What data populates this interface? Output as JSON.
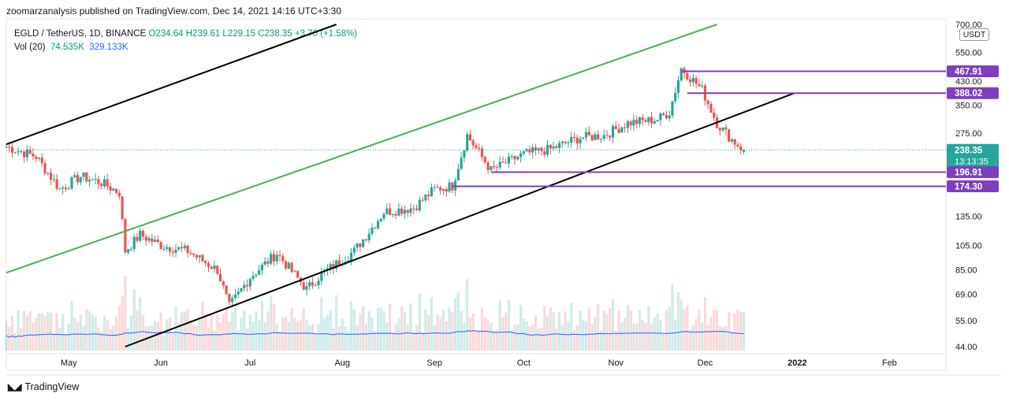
{
  "header": {
    "published": "zoomarzanalysis published on TradingView.com, Dec 14, 2021 14:16 UTC+3:30"
  },
  "legend": {
    "symbol": "EGLD / TetherUS, 1D, BINANCE",
    "ohlc": "O234.64  H239.61  L229.15  C238.35  +3.70 (+1.58%)",
    "volume_label": "Vol (20)",
    "volume_value": "74.535K",
    "volume_ma": "329.133K"
  },
  "price_axis": {
    "unit": "USDT",
    "ticks": [
      "700.00",
      "550.00",
      "430.00",
      "350.00",
      "275.00",
      "135.00",
      "105.00",
      "85.00",
      "69.00",
      "55.00",
      "44.00"
    ]
  },
  "time_axis": {
    "ticks": [
      "May",
      "Jun",
      "Jul",
      "Aug",
      "Sep",
      "Oct",
      "Nov",
      "Dec",
      "2022",
      "Feb"
    ]
  },
  "price_labels": [
    {
      "text": "467.91",
      "color": "#7e3fbe"
    },
    {
      "text": "388.02",
      "color": "#7e3fbe"
    },
    {
      "text": "238.35",
      "sub": "13:13:35",
      "color": "#26a69a"
    },
    {
      "text": "196.91",
      "color": "#7e3fbe"
    },
    {
      "text": "174.30",
      "color": "#7e3fbe"
    }
  ],
  "footer": {
    "brand": "TradingView",
    "logo": "tradingview-logo-icon"
  },
  "colors": {
    "up": "#26a69a",
    "down": "#ef5350",
    "channel_green": "#4caf50",
    "channel_black": "#000000",
    "support": "#7e3fbe",
    "volume_ma": "#2962ff"
  },
  "chart_data": {
    "type": "candlestick",
    "symbol": "EGLD / TetherUS",
    "interval": "1D",
    "exchange": "BINANCE",
    "scale": "log",
    "ylim": [
      44,
      700
    ],
    "x_range": [
      "2021-04-10",
      "2022-02-20"
    ],
    "last": {
      "open": 234.64,
      "high": 239.61,
      "low": 229.15,
      "close": 238.35,
      "change": 3.7,
      "change_pct": 1.58
    },
    "horizontal_levels": [
      467.91,
      388.02,
      196.91,
      174.3
    ],
    "channels": [
      {
        "name": "green",
        "color": "#4caf50",
        "points": [
          [
            "2021-04-10",
            83
          ],
          [
            "2021-12-05",
            700
          ]
        ]
      },
      {
        "name": "black-lower",
        "color": "#000000",
        "points": [
          [
            "2021-05-20",
            44
          ],
          [
            "2021-12-31",
            388.02
          ]
        ]
      },
      {
        "name": "black-upper",
        "color": "#000000",
        "points": [
          [
            "2021-04-10",
            250
          ],
          [
            "2021-07-30",
            700
          ]
        ]
      }
    ],
    "anchors": [
      [
        "2021-04-10",
        245
      ],
      [
        "2021-04-20",
        225
      ],
      [
        "2021-04-28",
        170
      ],
      [
        "2021-05-05",
        190
      ],
      [
        "2021-05-12",
        180
      ],
      [
        "2021-05-18",
        165
      ],
      [
        "2021-05-20",
        100
      ],
      [
        "2021-05-25",
        115
      ],
      [
        "2021-06-01",
        105
      ],
      [
        "2021-06-10",
        100
      ],
      [
        "2021-06-20",
        85
      ],
      [
        "2021-06-24",
        62
      ],
      [
        "2021-07-01",
        80
      ],
      [
        "2021-07-10",
        98
      ],
      [
        "2021-07-20",
        72
      ],
      [
        "2021-07-25",
        82
      ],
      [
        "2021-08-05",
        100
      ],
      [
        "2021-08-15",
        140
      ],
      [
        "2021-08-25",
        145
      ],
      [
        "2021-09-01",
        170
      ],
      [
        "2021-09-07",
        175
      ],
      [
        "2021-09-12",
        270
      ],
      [
        "2021-09-20",
        200
      ],
      [
        "2021-10-01",
        230
      ],
      [
        "2021-10-10",
        240
      ],
      [
        "2021-10-20",
        265
      ],
      [
        "2021-10-28",
        270
      ],
      [
        "2021-11-05",
        300
      ],
      [
        "2021-11-15",
        310
      ],
      [
        "2021-11-19",
        330
      ],
      [
        "2021-11-23",
        480
      ],
      [
        "2021-11-30",
        400
      ],
      [
        "2021-12-05",
        300
      ],
      [
        "2021-12-10",
        260
      ],
      [
        "2021-12-14",
        238.35
      ]
    ],
    "volume_ma_value": 329.133,
    "volume_value": 74.535
  }
}
